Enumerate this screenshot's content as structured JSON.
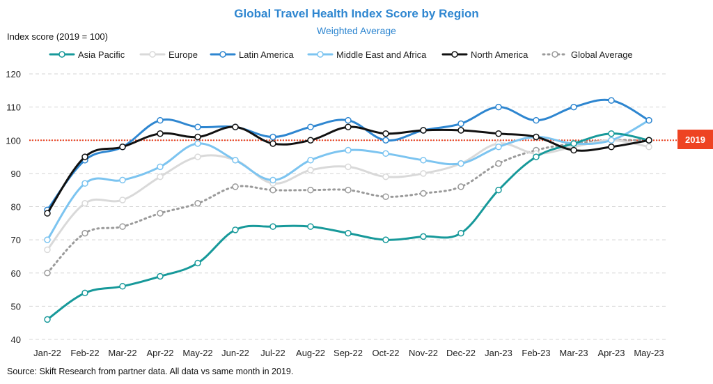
{
  "chart_data": {
    "type": "line",
    "title": "Global Travel Health Index Score by Region",
    "subtitle": "Weighted Average",
    "ylabel": "Index score (2019 = 100)",
    "xlabel": "",
    "ylim": [
      40,
      120
    ],
    "yticks": [
      40,
      50,
      60,
      70,
      80,
      90,
      100,
      110,
      120
    ],
    "categories": [
      "Jan-22",
      "Feb-22",
      "Mar-22",
      "Apr-22",
      "May-22",
      "Jun-22",
      "Jul-22",
      "Aug-22",
      "Sep-22",
      "Oct-22",
      "Nov-22",
      "Dec-22",
      "Jan-23",
      "Feb-23",
      "Mar-23",
      "Apr-23",
      "May-23"
    ],
    "reference_line": {
      "value": 100,
      "label": "2019",
      "color": "#ee4322"
    },
    "grid": true,
    "legend_position": "top",
    "series": [
      {
        "name": "Asia Pacific",
        "color": "#17999a",
        "dashed": false,
        "values": [
          46,
          54,
          56,
          59,
          63,
          73,
          74,
          74,
          72,
          70,
          71,
          72,
          85,
          95,
          99,
          102,
          100
        ]
      },
      {
        "name": "Europe",
        "color": "#d9d9d9",
        "dashed": false,
        "values": [
          67,
          81,
          82,
          89,
          95,
          94,
          87,
          91,
          92,
          89,
          90,
          93,
          99,
          96,
          98,
          100,
          98
        ]
      },
      {
        "name": "Latin America",
        "color": "#2e86d0",
        "dashed": false,
        "values": [
          79,
          94,
          98,
          106,
          104,
          104,
          101,
          104,
          106,
          100,
          103,
          105,
          110,
          106,
          110,
          112,
          106
        ]
      },
      {
        "name": "Middle East and Africa",
        "color": "#7cc4f0",
        "dashed": false,
        "values": [
          70,
          87,
          88,
          92,
          99,
          94,
          88,
          94,
          97,
          96,
          94,
          93,
          98,
          101,
          99,
          100,
          106
        ]
      },
      {
        "name": "North America",
        "color": "#111111",
        "dashed": false,
        "values": [
          78,
          95,
          98,
          102,
          101,
          104,
          99,
          100,
          104,
          102,
          103,
          103,
          102,
          101,
          97,
          98,
          100
        ]
      },
      {
        "name": "Global Average",
        "color": "#9a9a9a",
        "dashed": true,
        "values": [
          60,
          72,
          74,
          78,
          81,
          86,
          85,
          85,
          85,
          83,
          84,
          86,
          93,
          97,
          99,
          100,
          100
        ]
      }
    ]
  },
  "source": "Source: Skift Research from partner data. All data vs same month in 2019."
}
